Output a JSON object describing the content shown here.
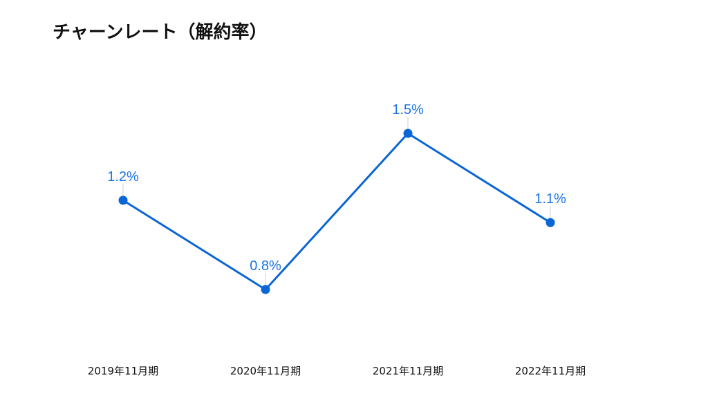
{
  "slide": {
    "title": "チャーンレート（解約率）"
  },
  "colors": {
    "series": "#0a66d6",
    "label": "#1a73e8",
    "leader": "#cfcfcf"
  },
  "chart_data": {
    "type": "line",
    "title": "チャーンレート（解約率）",
    "categories": [
      "2019年11月期",
      "2020年11月期",
      "2021年11月期",
      "2022年11月期"
    ],
    "series": [
      {
        "values": [
          1.2,
          0.8,
          1.5,
          1.1
        ],
        "data_labels": [
          "1.2%",
          "0.8%",
          "1.5%",
          "1.1%"
        ]
      }
    ],
    "y_unit": "%",
    "grid": false,
    "legend": "none",
    "markers": "filled-circle",
    "data_labels_position": "above"
  }
}
